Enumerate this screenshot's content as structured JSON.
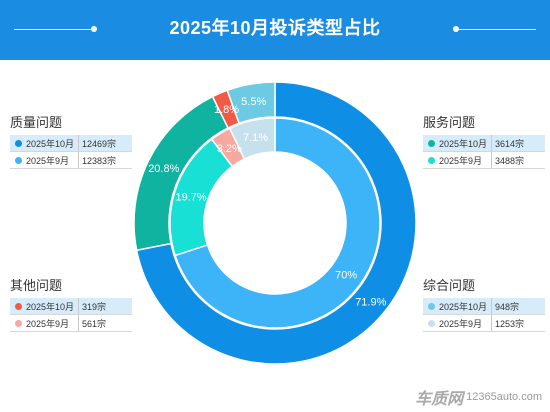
{
  "title": "2025年10月投诉类型占比",
  "chart_data": {
    "type": "pie",
    "title": "2025年10月投诉类型占比",
    "series": [
      {
        "name": "2025年10月",
        "values": [
          71.9,
          20.8,
          1.8,
          5.5
        ],
        "labels": [
          "71.9%",
          "20.8%",
          "1.8%",
          "5.5%"
        ],
        "counts": [
          12469,
          3614,
          319,
          948
        ]
      },
      {
        "name": "2025年9月",
        "values": [
          70,
          19.7,
          3.2,
          7.1
        ],
        "labels": [
          "70%",
          "19.7%",
          "3.2%",
          "7.1%"
        ],
        "counts": [
          12383,
          3488,
          561,
          1253
        ]
      }
    ],
    "categories": [
      "质量问题",
      "服务问题",
      "其他问题",
      "综合问题"
    ],
    "colors": {
      "outer": [
        "#0f8ee5",
        "#0fb3a0",
        "#f25a45",
        "#6ccbe2"
      ],
      "inner": [
        "#3db3f8",
        "#19e0d4",
        "#f7a9a0",
        "#c6e0ee"
      ]
    }
  },
  "groups": [
    {
      "title": "质量问题",
      "rows": [
        {
          "label": "2025年10月",
          "value": "12469宗"
        },
        {
          "label": "2025年9月",
          "value": "12383宗"
        }
      ]
    },
    {
      "title": "服务问题",
      "rows": [
        {
          "label": "2025年10月",
          "value": "3614宗"
        },
        {
          "label": "2025年9月",
          "value": "3488宗"
        }
      ]
    },
    {
      "title": "其他问题",
      "rows": [
        {
          "label": "2025年10月",
          "value": "319宗"
        },
        {
          "label": "2025年9月",
          "value": "561宗"
        }
      ]
    },
    {
      "title": "综合问题",
      "rows": [
        {
          "label": "2025年10月",
          "value": "948宗"
        },
        {
          "label": "2025年9月",
          "value": "1253宗"
        }
      ]
    }
  ],
  "watermark": {
    "brand": "车质网",
    "site": "12365auto.com"
  }
}
